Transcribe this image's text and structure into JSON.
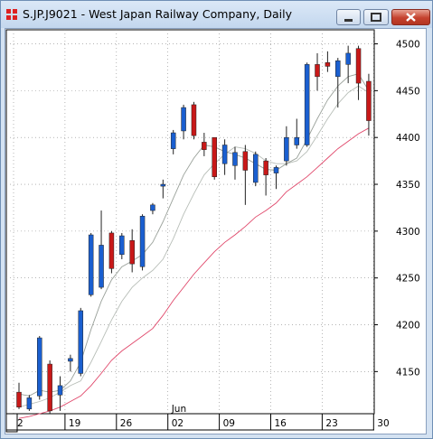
{
  "window": {
    "title": "S.JP.J9021 - West Japan Railway Company, Daily",
    "buttons": {
      "minimize": "minimize",
      "maximize": "maximize",
      "close": "close"
    }
  },
  "colors": {
    "up": "#1a5fd0",
    "down": "#c81818",
    "ma_short": "#9aa19a",
    "ma_mid": "#b8beb8",
    "ma_long": "#e0476a",
    "grid": "#888888"
  },
  "chart_data": {
    "type": "candlestick",
    "title": "S.JP.J9021 - West Japan Railway Company, Daily",
    "ylim": [
      4105,
      4515
    ],
    "y_ticks": [
      4150,
      4200,
      4250,
      4300,
      4350,
      4400,
      4450,
      4500
    ],
    "x_ticks": [
      "2",
      "19",
      "26",
      "02",
      "09",
      "16",
      "23",
      "30"
    ],
    "month_label": "Jun",
    "candles": [
      {
        "o": 4128,
        "h": 4138,
        "l": 4110,
        "c": 4112
      },
      {
        "o": 4110,
        "h": 4125,
        "l": 4108,
        "c": 4122
      },
      {
        "o": 4124,
        "h": 4188,
        "l": 4120,
        "c": 4186
      },
      {
        "o": 4158,
        "h": 4162,
        "l": 4105,
        "c": 4108
      },
      {
        "o": 4125,
        "h": 4145,
        "l": 4108,
        "c": 4135
      },
      {
        "o": 4161,
        "h": 4168,
        "l": 4150,
        "c": 4164
      },
      {
        "o": 4148,
        "h": 4218,
        "l": 4145,
        "c": 4215
      },
      {
        "o": 4232,
        "h": 4298,
        "l": 4230,
        "c": 4296
      },
      {
        "o": 4240,
        "h": 4322,
        "l": 4238,
        "c": 4285
      },
      {
        "o": 4298,
        "h": 4300,
        "l": 4255,
        "c": 4260
      },
      {
        "o": 4275,
        "h": 4298,
        "l": 4270,
        "c": 4295
      },
      {
        "o": 4290,
        "h": 4302,
        "l": 4256,
        "c": 4265
      },
      {
        "o": 4262,
        "h": 4318,
        "l": 4258,
        "c": 4316
      },
      {
        "o": 4322,
        "h": 4330,
        "l": 4318,
        "c": 4328
      },
      {
        "o": 4348,
        "h": 4355,
        "l": 4335,
        "c": 4350
      },
      {
        "o": 4388,
        "h": 4408,
        "l": 4382,
        "c": 4405
      },
      {
        "o": 4407,
        "h": 4435,
        "l": 4398,
        "c": 4432
      },
      {
        "o": 4435,
        "h": 4438,
        "l": 4398,
        "c": 4402
      },
      {
        "o": 4395,
        "h": 4405,
        "l": 4380,
        "c": 4387
      },
      {
        "o": 4400,
        "h": 4400,
        "l": 4355,
        "c": 4358
      },
      {
        "o": 4372,
        "h": 4398,
        "l": 4360,
        "c": 4392
      },
      {
        "o": 4370,
        "h": 4390,
        "l": 4355,
        "c": 4384
      },
      {
        "o": 4385,
        "h": 4392,
        "l": 4328,
        "c": 4365
      },
      {
        "o": 4352,
        "h": 4385,
        "l": 4348,
        "c": 4382
      },
      {
        "o": 4375,
        "h": 4378,
        "l": 4338,
        "c": 4360
      },
      {
        "o": 4362,
        "h": 4370,
        "l": 4345,
        "c": 4368
      },
      {
        "o": 4375,
        "h": 4412,
        "l": 4370,
        "c": 4400
      },
      {
        "o": 4392,
        "h": 4420,
        "l": 4388,
        "c": 4400
      },
      {
        "o": 4392,
        "h": 4480,
        "l": 4390,
        "c": 4478
      },
      {
        "o": 4478,
        "h": 4490,
        "l": 4450,
        "c": 4465
      },
      {
        "o": 4480,
        "h": 4492,
        "l": 4470,
        "c": 4476
      },
      {
        "o": 4465,
        "h": 4485,
        "l": 4432,
        "c": 4482
      },
      {
        "o": 4478,
        "h": 4498,
        "l": 4458,
        "c": 4490
      },
      {
        "o": 4495,
        "h": 4498,
        "l": 4440,
        "c": 4458
      },
      {
        "o": 4460,
        "h": 4468,
        "l": 4402,
        "c": 4418
      }
    ],
    "ma_short": [
      4126,
      4124,
      4130,
      4128,
      4130,
      4140,
      4160,
      4195,
      4225,
      4248,
      4262,
      4268,
      4275,
      4288,
      4310,
      4335,
      4360,
      4378,
      4392,
      4390,
      4385,
      4382,
      4378,
      4372,
      4366,
      4365,
      4372,
      4378,
      4398,
      4420,
      4440,
      4455,
      4465,
      4468,
      4450
    ],
    "ma_mid": [
      4112,
      4115,
      4118,
      4122,
      4128,
      4135,
      4140,
      4160,
      4182,
      4205,
      4225,
      4240,
      4250,
      4258,
      4270,
      4292,
      4318,
      4340,
      4360,
      4372,
      4382,
      4390,
      4388,
      4383,
      4375,
      4372,
      4372,
      4375,
      4385,
      4402,
      4420,
      4436,
      4448,
      4455,
      4448
    ],
    "ma_long": [
      4100,
      4102,
      4105,
      4108,
      4112,
      4118,
      4124,
      4135,
      4148,
      4162,
      4172,
      4180,
      4188,
      4196,
      4210,
      4226,
      4240,
      4254,
      4266,
      4278,
      4288,
      4296,
      4305,
      4315,
      4322,
      4330,
      4342,
      4350,
      4358,
      4368,
      4378,
      4388,
      4396,
      4404,
      4410
    ]
  }
}
